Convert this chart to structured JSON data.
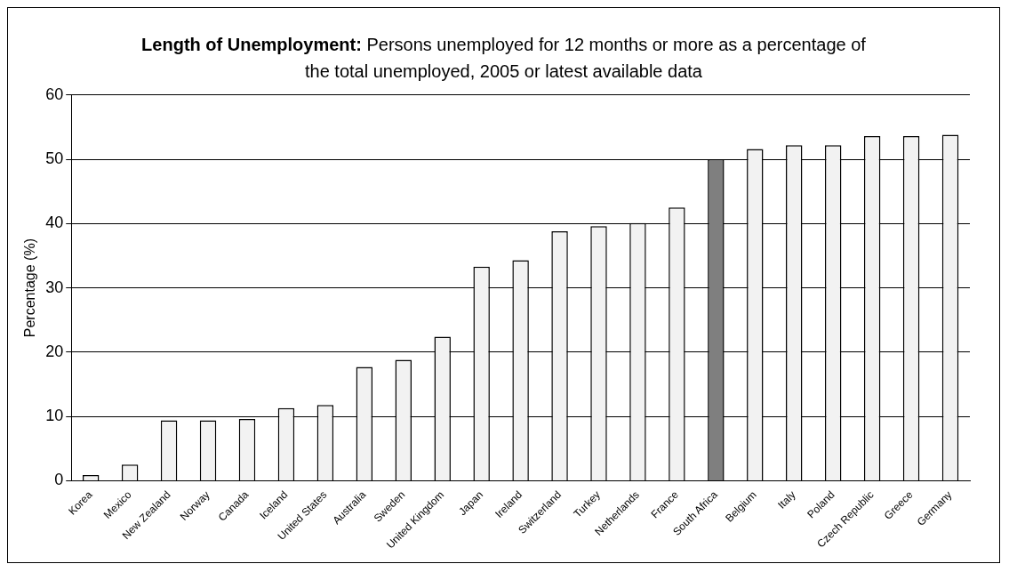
{
  "chart_data": {
    "type": "bar",
    "title": "Length of Unemployment:",
    "subtitle": "Persons unemployed for 12 months or more as a percentage of the total unemployed, 2005 or latest available data",
    "ylabel": "Percentage (%)",
    "categories": [
      "Korea",
      "Mexico",
      "New Zealand",
      "Norway",
      "Canada",
      "Iceland",
      "United States",
      "Australia",
      "Sweden",
      "United Kingdom",
      "Japan",
      "Ireland",
      "Switzerland",
      "Turkey",
      "Netherlands",
      "France",
      "South Africa",
      "Belgium",
      "Italy",
      "Poland",
      "Czech Republic",
      "Greece",
      "Germany"
    ],
    "values": [
      0.9,
      2.5,
      9.4,
      9.4,
      9.6,
      11.3,
      11.8,
      17.7,
      18.8,
      22.4,
      33.3,
      34.3,
      38.8,
      39.6,
      40.1,
      42.5,
      50,
      51.6,
      52.2,
      52.2,
      53.6,
      53.6,
      53.8
    ],
    "colors": [
      "#f2f2f2",
      "#f2f2f2",
      "#f2f2f2",
      "#f2f2f2",
      "#f2f2f2",
      "#f2f2f2",
      "#f2f2f2",
      "#f2f2f2",
      "#f2f2f2",
      "#f2f2f2",
      "#f2f2f2",
      "#f2f2f2",
      "#f2f2f2",
      "#f2f2f2",
      "#f2f2f2",
      "#f2f2f2",
      "#7f7f7f",
      "#f2f2f2",
      "#f2f2f2",
      "#f2f2f2",
      "#f2f2f2",
      "#f2f2f2",
      "#f2f2f2"
    ],
    "ylim": [
      0,
      60
    ],
    "yticks": [
      0,
      10,
      20,
      30,
      40,
      50,
      60
    ],
    "grid": "y",
    "legend": false
  }
}
